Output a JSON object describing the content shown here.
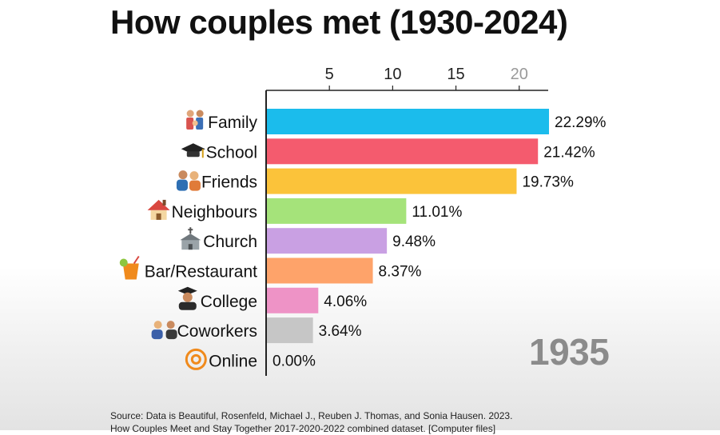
{
  "title": "How couples met (1930-2024)",
  "year": "1935",
  "source_lines": [
    "Source: Data is Beautiful, Rosenfeld, Michael J., Reuben J. Thomas, and Sonia Hausen. 2023.",
    "How Couples Meet and Stay Together 2017-2020-2022 combined dataset. [Computer files]"
  ],
  "chart_data": {
    "type": "bar",
    "orientation": "horizontal",
    "title": "How couples met (1930-2024)",
    "categories": [
      "Family",
      "School",
      "Friends",
      "Neighbours",
      "Church",
      "Bar/Restaurant",
      "College",
      "Coworkers",
      "Online"
    ],
    "icons": [
      "family-icon",
      "graduation-cap-icon",
      "friends-icon",
      "house-icon",
      "church-icon",
      "cocktail-icon",
      "graduate-icon",
      "coworkers-icon",
      "at-sign-icon"
    ],
    "values": [
      22.29,
      21.42,
      19.73,
      11.01,
      9.48,
      8.37,
      4.06,
      3.64,
      0.0
    ],
    "value_labels": [
      "22.29%",
      "21.42%",
      "19.73%",
      "11.01%",
      "9.48%",
      "8.37%",
      "4.06%",
      "3.64%",
      "0.00%"
    ],
    "colors": [
      "#1bbcec",
      "#f45b6e",
      "#fbc33a",
      "#a5e37a",
      "#c9a0e3",
      "#fea36a",
      "#ee93c6",
      "#c6c6c6",
      "#c6c6c6"
    ],
    "xaxis_ticks": [
      5,
      10,
      15,
      20
    ],
    "xaxis_tick_labels": [
      "5",
      "10",
      "15",
      "20"
    ],
    "xlim": [
      0,
      22.29
    ],
    "xaxis_position": "top",
    "grid": false,
    "legend": "none"
  }
}
